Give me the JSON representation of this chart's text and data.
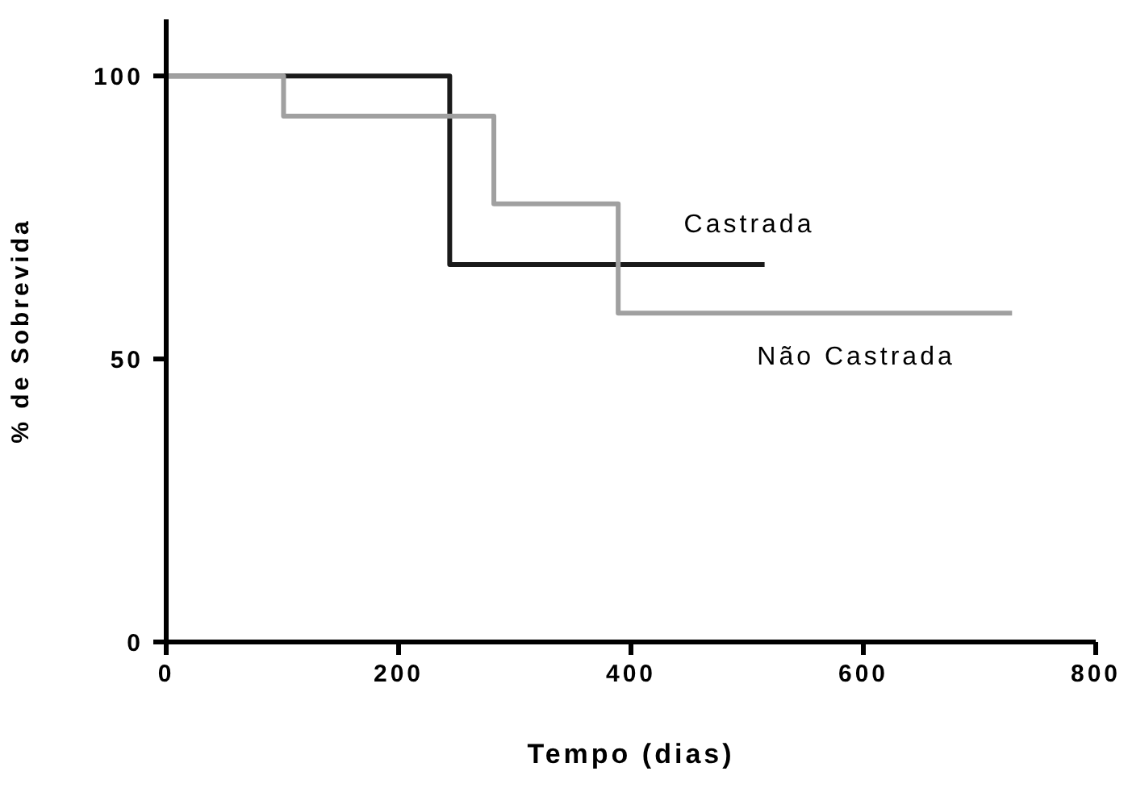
{
  "chart_data": {
    "type": "step",
    "xlabel": "Tempo (dias)",
    "ylabel": "% de Sobrevida",
    "xlim": [
      0,
      800
    ],
    "xticks": [
      0,
      200,
      400,
      600,
      800
    ],
    "ylim": [
      0,
      110
    ],
    "yticks": [
      0,
      50,
      100
    ],
    "grid": false,
    "legend": false,
    "marker": "none",
    "line_style": "solid",
    "series": [
      {
        "name": "Castrada",
        "color": "#1a1a1a",
        "x": [
          0,
          244,
          515
        ],
        "values": [
          100,
          66.7,
          66.7
        ]
      },
      {
        "name": "Não Castrada",
        "color": "#a0a0a0",
        "x": [
          0,
          101,
          282,
          389,
          728
        ],
        "values": [
          100,
          92.9,
          77.4,
          58.1,
          58.1
        ]
      }
    ]
  }
}
